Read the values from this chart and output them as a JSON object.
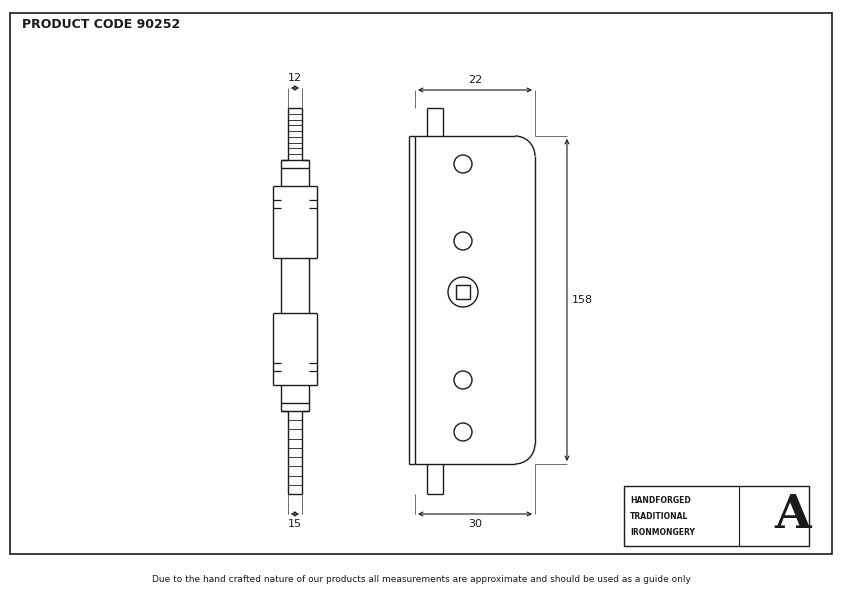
{
  "product_code": "PRODUCT CODE 90252",
  "lc": "#1a1a1a",
  "footer_text": "Due to the hand crafted nature of our products all measurements are approximate and should be used as a guide only",
  "brand_lines": [
    "HANDFORGED",
    "TRADITIONAL",
    "IRONMONGERY"
  ],
  "dims": {
    "top_width": "12",
    "bot_width": "15",
    "face_width": "22",
    "backset": "30",
    "height": "158"
  },
  "figsize": [
    8.42,
    5.96
  ],
  "dpi": 100
}
